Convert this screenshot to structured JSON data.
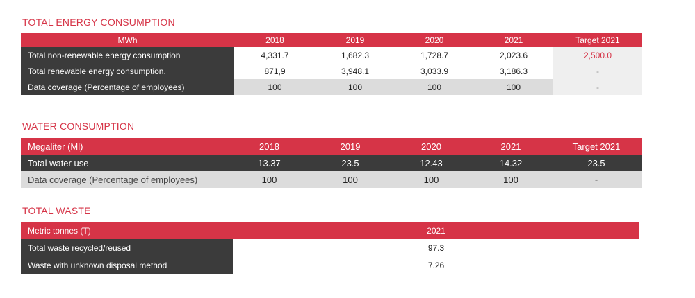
{
  "energy": {
    "title": "TOTAL ENERGY CONSUMPTION",
    "header": [
      "MWh",
      "2018",
      "2019",
      "2020",
      "2021",
      "Target 2021"
    ],
    "rows": [
      {
        "label": "Total non-renewable energy consumption",
        "values": [
          "4,331.7",
          "1,682.3",
          "1,728.7",
          "2,023.6"
        ],
        "target": "2,500.0"
      },
      {
        "label": "Total renewable energy consumption.",
        "values": [
          "871,9",
          "3,948.1",
          "3,033.9",
          "3,186.3"
        ],
        "target": "-"
      },
      {
        "label": "Data coverage (Percentage of employees)",
        "values": [
          "100",
          "100",
          "100",
          "100"
        ],
        "target": "-"
      }
    ]
  },
  "water": {
    "title": "WATER CONSUMPTION",
    "header": [
      "Megaliter (Ml)",
      "2018",
      "2019",
      "2020",
      "2021",
      "Target 2021"
    ],
    "rows": [
      {
        "label": "Total water use",
        "values": [
          "13.37",
          "23.5",
          "12.43",
          "14.32"
        ],
        "target": "23.5"
      },
      {
        "label": "Data coverage (Percentage of employees)",
        "values": [
          "100",
          "100",
          "100",
          "100"
        ],
        "target": "-"
      }
    ]
  },
  "waste": {
    "title": "TOTAL WASTE",
    "header": [
      "Metric tonnes (T)",
      "2021"
    ],
    "rows": [
      {
        "label": "Total waste recycled/reused",
        "value": "97.3"
      },
      {
        "label": "Waste with unknown disposal method",
        "value": "7.26"
      }
    ]
  },
  "colors": {
    "accent": "#d63447",
    "dark": "#3b3b3b",
    "grey": "#dcdcdc"
  }
}
